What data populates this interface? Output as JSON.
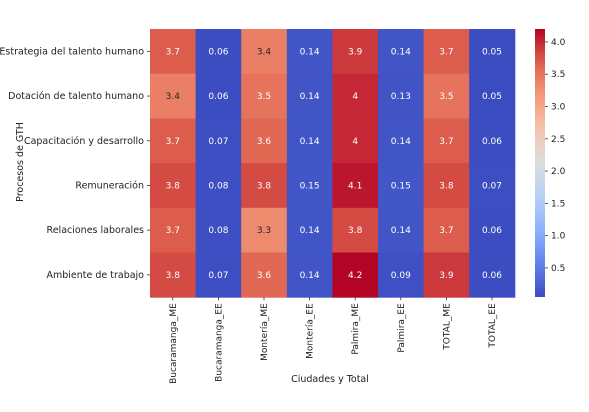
{
  "chart_data": {
    "type": "heatmap",
    "rows": [
      "Estrategia del talento humano",
      "Dotación de talento humano",
      "Capacitación y desarrollo",
      "Remuneración",
      "Relaciones laborales",
      "Ambiente de trabajo"
    ],
    "columns": [
      "Bucaramanga_ME",
      "Bucaramanga_EE",
      "Montería_ME",
      "Montería_EE",
      "Palmira_ME",
      "Palmira_EE",
      "TOTAL_ME",
      "TOTAL_EE"
    ],
    "values": [
      [
        3.7,
        0.06,
        3.4,
        0.14,
        3.9,
        0.14,
        3.7,
        0.05
      ],
      [
        3.4,
        0.06,
        3.5,
        0.14,
        4,
        0.13,
        3.5,
        0.05
      ],
      [
        3.7,
        0.07,
        3.6,
        0.14,
        4,
        0.14,
        3.7,
        0.06
      ],
      [
        3.8,
        0.08,
        3.8,
        0.15,
        4.1,
        0.15,
        3.8,
        0.07
      ],
      [
        3.7,
        0.08,
        3.3,
        0.14,
        3.8,
        0.14,
        3.7,
        0.06
      ],
      [
        3.8,
        0.07,
        3.6,
        0.14,
        4.2,
        0.09,
        3.9,
        0.06
      ]
    ],
    "xlabel": "Ciudades y Total",
    "ylabel": "Procesos de GTH",
    "colormap": "coolwarm",
    "vmin": 0.05,
    "vmax": 4.2,
    "colorbar_ticks": [
      0.5,
      1.0,
      1.5,
      2.0,
      2.5,
      3.0,
      3.5,
      4.0
    ],
    "colorbar_tick_labels": [
      "0.5",
      "1.0",
      "1.5",
      "2.0",
      "2.5",
      "3.0",
      "3.5",
      "4.0"
    ]
  }
}
